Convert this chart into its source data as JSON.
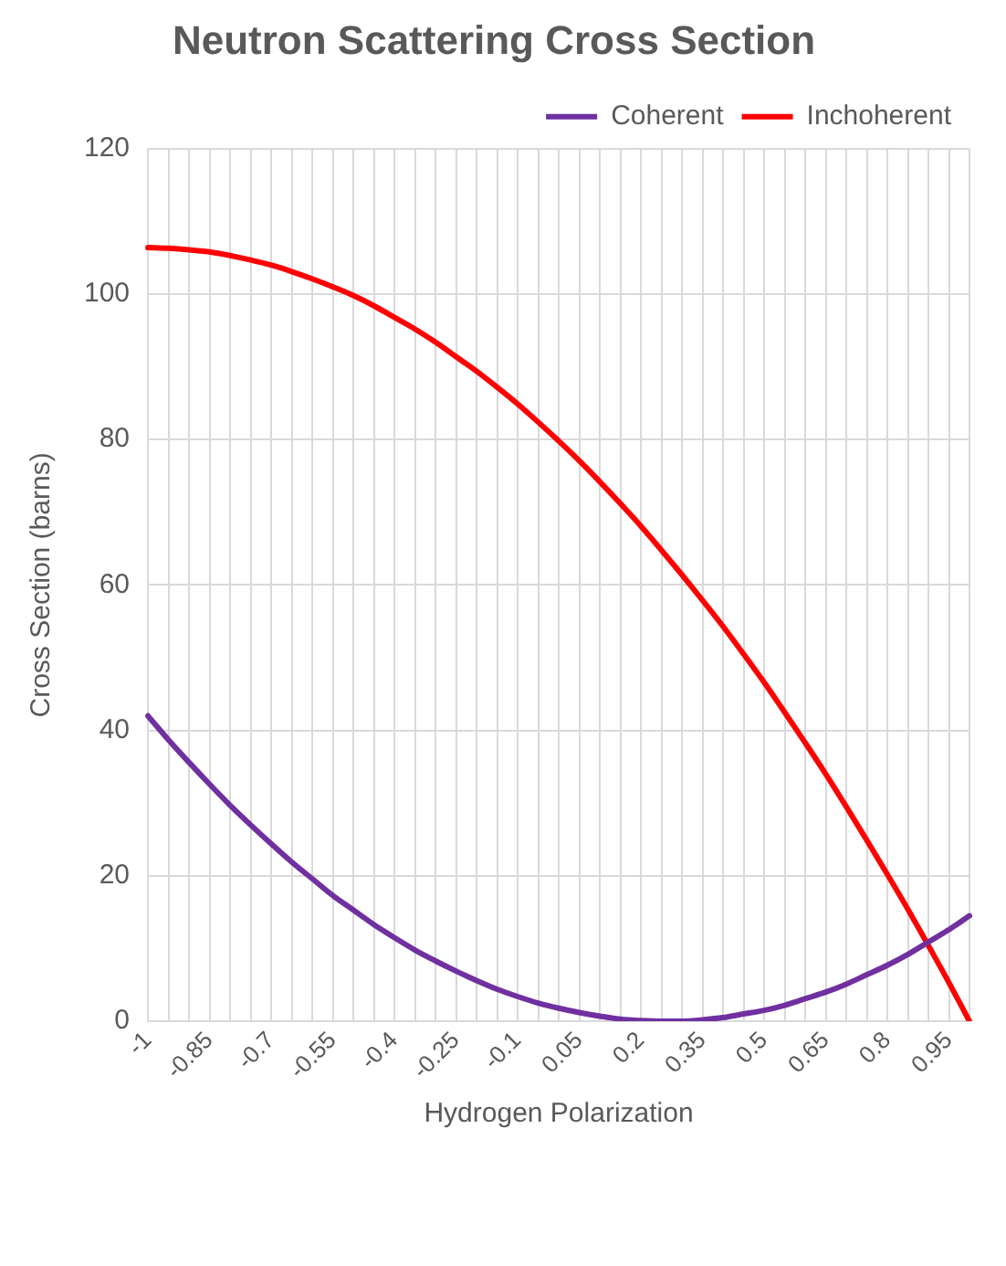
{
  "chart_data": {
    "type": "line",
    "title": "Neutron Scattering Cross Section",
    "xlabel": "Hydrogen Polarization",
    "ylabel": "Cross Section (barns)",
    "categories": [
      "-1",
      null,
      null,
      "-0.85",
      null,
      null,
      "-0.7",
      null,
      null,
      "-0.55",
      null,
      null,
      "-0.4",
      null,
      null,
      "-0.25",
      null,
      null,
      "-0.1",
      null,
      null,
      "0.05",
      null,
      null,
      "0.2",
      null,
      null,
      "0.35",
      null,
      null,
      "0.5",
      null,
      null,
      "0.65",
      null,
      null,
      "0.8",
      null,
      null,
      "0.95",
      null
    ],
    "series": [
      {
        "name": "Coherent",
        "color": "#7030a0",
        "values": [
          42.0,
          38.7,
          35.6,
          32.6,
          29.7,
          27.0,
          24.4,
          21.9,
          19.6,
          17.3,
          15.3,
          13.3,
          11.5,
          9.8,
          8.3,
          6.9,
          5.6,
          4.4,
          3.4,
          2.5,
          1.8,
          1.2,
          0.7,
          0.3,
          0.1,
          0.0,
          0.0,
          0.2,
          0.5,
          1.0,
          1.5,
          2.2,
          3.1,
          4.0,
          5.1,
          6.4,
          7.7,
          9.2,
          10.9,
          12.6,
          14.5
        ]
      },
      {
        "name": "Inchoherent",
        "color": "#ff0000",
        "values": [
          106.4,
          106.3,
          106.1,
          105.8,
          105.3,
          104.7,
          104.0,
          103.1,
          102.1,
          101.0,
          99.8,
          98.4,
          96.8,
          95.2,
          93.4,
          91.4,
          89.4,
          87.2,
          84.9,
          82.4,
          79.8,
          77.1,
          74.2,
          71.2,
          68.1,
          64.8,
          61.4,
          57.9,
          54.3,
          50.5,
          46.6,
          42.5,
          38.3,
          34.0,
          29.5,
          24.9,
          20.2,
          15.4,
          10.4,
          5.3,
          0.0
        ]
      }
    ],
    "ylim": [
      0,
      120
    ],
    "yticks": [
      0,
      20,
      40,
      60,
      80,
      100,
      120
    ],
    "grid": true,
    "legend": "top right",
    "marker": "none",
    "line_style": "solid"
  }
}
